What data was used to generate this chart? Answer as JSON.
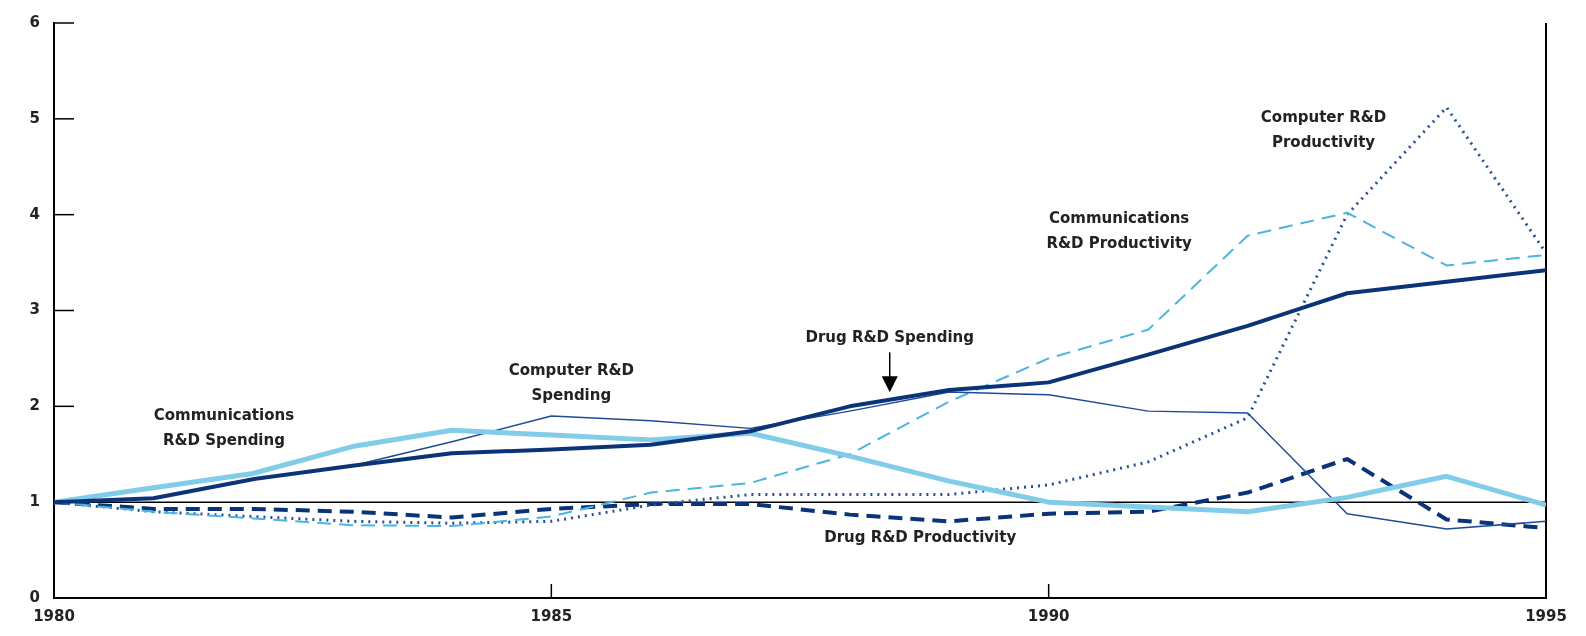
{
  "chart_data": {
    "type": "line",
    "x": [
      1980,
      1981,
      1982,
      1983,
      1984,
      1985,
      1986,
      1987,
      1988,
      1989,
      1990,
      1991,
      1992,
      1993,
      1994,
      1995
    ],
    "series": [
      {
        "name": "Drug R&D Spending",
        "color": "#0b3478",
        "line_style": "solid",
        "values": [
          1.0,
          1.04,
          1.24,
          1.38,
          1.51,
          1.55,
          1.6,
          1.74,
          2.0,
          2.17,
          2.25,
          2.54,
          2.84,
          3.18,
          3.3,
          3.42
        ]
      },
      {
        "name": "Communications\nR&D Spending",
        "color": "#80cce9",
        "line_style": "solid",
        "values": [
          1.0,
          1.15,
          1.3,
          1.58,
          1.75,
          1.7,
          1.65,
          1.72,
          1.48,
          1.22,
          1.0,
          0.95,
          0.9,
          1.05,
          1.27,
          0.97
        ]
      },
      {
        "name": "Computer R&D\nSpending",
        "color": "#1f4a96",
        "line_style": "solid",
        "values": [
          1.0,
          1.04,
          1.24,
          1.38,
          1.63,
          1.9,
          1.85,
          1.77,
          1.95,
          2.15,
          2.12,
          1.95,
          1.93,
          0.88,
          0.72,
          0.8
        ]
      },
      {
        "name": "Communications\nR&D Productivity",
        "color": "#4bb5e0",
        "line_style": "dashed",
        "values": [
          1.0,
          0.9,
          0.83,
          0.76,
          0.75,
          0.85,
          1.1,
          1.2,
          1.5,
          2.05,
          2.5,
          2.8,
          3.78,
          4.02,
          3.47,
          3.58
        ]
      },
      {
        "name": "Computer R&D\nProductivity",
        "color": "#2a4f96",
        "line_style": "dotted",
        "values": [
          1.0,
          0.9,
          0.85,
          0.8,
          0.78,
          0.8,
          0.97,
          1.08,
          1.08,
          1.08,
          1.18,
          1.42,
          1.88,
          4.0,
          5.12,
          3.6
        ]
      },
      {
        "name": "Drug R&D Productivity",
        "color": "#0b3478",
        "line_style": "dashed",
        "values": [
          1.0,
          0.93,
          0.93,
          0.9,
          0.84,
          0.93,
          0.98,
          0.98,
          0.87,
          0.8,
          0.88,
          0.9,
          1.1,
          1.45,
          0.82,
          0.73
        ]
      }
    ],
    "xlim": [
      1980,
      1995
    ],
    "xticks": [
      1980,
      1985,
      1990,
      1995
    ],
    "ylim": [
      0,
      6
    ],
    "yticks": [
      0,
      1,
      2,
      3,
      4,
      5,
      6
    ],
    "ref_lines": [
      {
        "axis": "y",
        "value": 1,
        "color": "#000000"
      }
    ],
    "grid": false,
    "legend": false,
    "marker": "none"
  }
}
